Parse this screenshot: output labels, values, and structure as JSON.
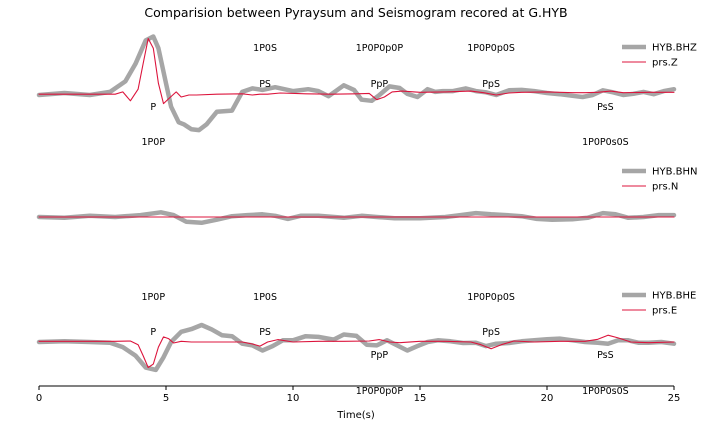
{
  "chart_data": {
    "type": "line",
    "title": "Comparision between Pyraysum and Seismogram recored at G.HYB",
    "xlabel": "Time(s)",
    "ylabel": "",
    "xlim": [
      0,
      25
    ],
    "xticks": [
      0,
      5,
      10,
      15,
      20,
      25
    ],
    "grid": false,
    "colors": {
      "observed": "#a6a6a6",
      "synthetic": "#dc143c"
    },
    "panels": [
      {
        "name": "Z",
        "legend_placement": "top-right",
        "series": [
          {
            "name": "HYB.BHZ",
            "role": "observed",
            "x": [
              0,
              1,
              2,
              2.8,
              3.4,
              3.8,
              4.2,
              4.5,
              4.7,
              5.0,
              5.2,
              5.5,
              5.7,
              6.0,
              6.3,
              6.6,
              7.0,
              7.6,
              8.0,
              8.4,
              8.8,
              9.3,
              10.0,
              10.6,
              11.0,
              11.4,
              12.0,
              12.4,
              12.7,
              13.1,
              13.4,
              13.8,
              14.2,
              14.5,
              14.9,
              15.3,
              15.6,
              15.9,
              16.3,
              16.8,
              17.2,
              17.6,
              18.0,
              18.5,
              19.0,
              19.5,
              20.0,
              20.5,
              21.0,
              21.4,
              21.8,
              22.2,
              22.6,
              23.0,
              23.4,
              23.8,
              24.2,
              24.6,
              25.0
            ],
            "y": [
              0.0,
              0.05,
              0.0,
              0.08,
              0.35,
              0.8,
              1.4,
              1.5,
              1.2,
              0.3,
              -0.3,
              -0.7,
              -0.75,
              -0.88,
              -0.9,
              -0.75,
              -0.43,
              -0.4,
              0.08,
              0.17,
              0.13,
              0.2,
              0.1,
              0.15,
              0.1,
              -0.03,
              0.25,
              0.13,
              -0.12,
              -0.15,
              0.0,
              0.22,
              0.18,
              0.03,
              -0.05,
              0.15,
              0.08,
              0.1,
              0.1,
              0.17,
              0.1,
              0.07,
              0.0,
              0.12,
              0.13,
              0.1,
              0.05,
              0.02,
              -0.02,
              -0.05,
              0.0,
              0.12,
              0.07,
              0.0,
              0.03,
              0.08,
              0.02,
              0.1,
              0.15
            ]
          },
          {
            "name": "prs.Z",
            "role": "synthetic",
            "x": [
              0,
              2,
              3,
              3.3,
              3.6,
              3.9,
              4.1,
              4.3,
              4.5,
              4.7,
              4.9,
              5.1,
              5.4,
              5.6,
              5.9,
              6.2,
              7,
              8,
              8.4,
              8.7,
              9.0,
              9.5,
              10.5,
              11.5,
              12.5,
              13.0,
              13.3,
              13.6,
              13.9,
              14.3,
              15.0,
              16,
              17.0,
              17.5,
              18.0,
              18.5,
              19,
              20,
              21,
              21.5,
              22,
              22.5,
              23,
              24,
              25
            ],
            "y": [
              0.02,
              0.02,
              0.02,
              0.08,
              -0.15,
              0.15,
              0.8,
              1.45,
              1.2,
              0.3,
              -0.22,
              -0.1,
              0.08,
              -0.05,
              0.0,
              0.0,
              0.02,
              0.03,
              0.0,
              0.02,
              0.02,
              0.05,
              0.03,
              0.02,
              0.03,
              0.04,
              -0.12,
              -0.05,
              0.08,
              0.1,
              0.07,
              0.08,
              0.1,
              0.06,
              0.0,
              0.05,
              0.07,
              0.08,
              0.06,
              0.06,
              0.07,
              0.1,
              0.06,
              0.07,
              0.07
            ]
          }
        ],
        "annotations": [
          {
            "text": "P",
            "x": 4.5,
            "row": "below"
          },
          {
            "text": "1P0P",
            "x": 4.5,
            "row": "low"
          },
          {
            "text": "1P0S",
            "x": 8.9,
            "row": "top"
          },
          {
            "text": "PS",
            "x": 8.9,
            "row": "upper"
          },
          {
            "text": "1P0P0p0P",
            "x": 13.4,
            "row": "top"
          },
          {
            "text": "PpP",
            "x": 13.4,
            "row": "upper"
          },
          {
            "text": "1P0P0p0S",
            "x": 17.8,
            "row": "top"
          },
          {
            "text": "PpS",
            "x": 17.8,
            "row": "upper"
          },
          {
            "text": "PsS",
            "x": 22.3,
            "row": "below"
          },
          {
            "text": "1P0P0s0S",
            "x": 22.3,
            "row": "low"
          }
        ]
      },
      {
        "name": "N",
        "legend_placement": "top-right",
        "series": [
          {
            "name": "HYB.BHN",
            "role": "observed",
            "x": [
              0,
              1,
              2,
              3,
              4,
              4.8,
              5.3,
              5.8,
              6.4,
              7.0,
              7.6,
              8.2,
              8.8,
              9.3,
              9.8,
              10.3,
              11.0,
              12.0,
              12.7,
              13.3,
              14.0,
              15.0,
              16.0,
              16.6,
              17.2,
              17.8,
              18.4,
              19.0,
              19.6,
              20.2,
              21.0,
              21.6,
              22.2,
              22.7,
              23.2,
              23.8,
              24.4,
              25.0
            ],
            "y": [
              0.0,
              -0.02,
              0.03,
              0.0,
              0.05,
              0.12,
              0.05,
              -0.12,
              -0.15,
              -0.07,
              0.02,
              0.05,
              0.07,
              0.03,
              -0.05,
              0.03,
              0.03,
              -0.02,
              0.03,
              0.0,
              -0.03,
              -0.03,
              0.0,
              0.05,
              0.1,
              0.07,
              0.05,
              0.02,
              -0.05,
              -0.07,
              -0.06,
              -0.02,
              0.1,
              0.07,
              -0.02,
              0.0,
              0.05,
              0.05
            ]
          },
          {
            "name": "prs.N",
            "role": "synthetic",
            "x": [
              0,
              25
            ],
            "y": [
              0.0,
              0.0
            ]
          }
        ],
        "annotations": []
      },
      {
        "name": "E",
        "legend_placement": "top-right",
        "series": [
          {
            "name": "HYB.BHE",
            "role": "observed",
            "x": [
              0,
              1,
              2,
              2.8,
              3.3,
              3.8,
              4.2,
              4.6,
              4.9,
              5.2,
              5.6,
              6.0,
              6.4,
              6.8,
              7.2,
              7.6,
              8.0,
              8.4,
              8.8,
              9.2,
              9.6,
              10.0,
              10.5,
              11.0,
              11.6,
              12.0,
              12.5,
              12.9,
              13.3,
              13.7,
              14.1,
              14.5,
              14.9,
              15.3,
              15.7,
              16.2,
              16.7,
              17.2,
              17.6,
              18.0,
              18.5,
              19.0,
              19.5,
              20.0,
              20.5,
              21.0,
              21.5,
              22.0,
              22.4,
              22.8,
              23.2,
              23.6,
              24.0,
              24.5,
              25.0
            ],
            "y": [
              0.0,
              0.02,
              0.0,
              -0.02,
              -0.15,
              -0.4,
              -0.75,
              -0.82,
              -0.45,
              0.0,
              0.3,
              0.38,
              0.5,
              0.37,
              0.2,
              0.17,
              -0.05,
              -0.1,
              -0.25,
              -0.12,
              0.05,
              0.05,
              0.17,
              0.15,
              0.07,
              0.22,
              0.18,
              -0.08,
              -0.1,
              0.05,
              -0.1,
              -0.25,
              -0.12,
              0.0,
              0.05,
              0.02,
              -0.03,
              -0.02,
              -0.12,
              -0.05,
              -0.03,
              0.02,
              0.05,
              0.08,
              0.1,
              0.05,
              0.0,
              -0.02,
              -0.05,
              0.05,
              0.05,
              -0.02,
              -0.02,
              0.0,
              -0.05
            ]
          },
          {
            "name": "prs.E",
            "role": "synthetic",
            "x": [
              0,
              2,
              3,
              3.6,
              3.9,
              4.1,
              4.3,
              4.5,
              4.7,
              4.9,
              5.1,
              5.3,
              5.6,
              6.0,
              7,
              8,
              8.4,
              8.7,
              9.0,
              9.4,
              10.0,
              11,
              12,
              13,
              13.4,
              13.8,
              14.2,
              15.0,
              16,
              17.0,
              17.4,
              17.8,
              18.2,
              18.7,
              19.5,
              20.5,
              21.5,
              22.0,
              22.4,
              22.8,
              23.3,
              24,
              25
            ],
            "y": [
              0.02,
              0.02,
              0.02,
              0.03,
              -0.08,
              -0.4,
              -0.75,
              -0.65,
              -0.15,
              0.15,
              0.1,
              -0.03,
              0.02,
              0.0,
              0.0,
              0.0,
              -0.06,
              -0.12,
              0.0,
              0.07,
              0.0,
              0.02,
              0.02,
              0.03,
              0.07,
              0.0,
              -0.02,
              0.02,
              0.02,
              0.0,
              -0.08,
              -0.2,
              -0.08,
              0.03,
              0.0,
              0.02,
              0.02,
              0.08,
              0.2,
              0.12,
              0.0,
              -0.02,
              0.0
            ]
          }
        ],
        "annotations": [
          {
            "text": "1P0P",
            "x": 4.5,
            "row": "top"
          },
          {
            "text": "P",
            "x": 4.5,
            "row": "upper"
          },
          {
            "text": "1P0S",
            "x": 8.9,
            "row": "top"
          },
          {
            "text": "PS",
            "x": 8.9,
            "row": "upper"
          },
          {
            "text": "PpP",
            "x": 13.4,
            "row": "below"
          },
          {
            "text": "1P0P0p0P",
            "x": 13.4,
            "row": "low"
          },
          {
            "text": "1P0P0p0S",
            "x": 17.8,
            "row": "top"
          },
          {
            "text": "PpS",
            "x": 17.8,
            "row": "upper"
          },
          {
            "text": "PsS",
            "x": 22.3,
            "row": "below"
          },
          {
            "text": "1P0P0s0S",
            "x": 22.3,
            "row": "low"
          }
        ]
      }
    ]
  }
}
